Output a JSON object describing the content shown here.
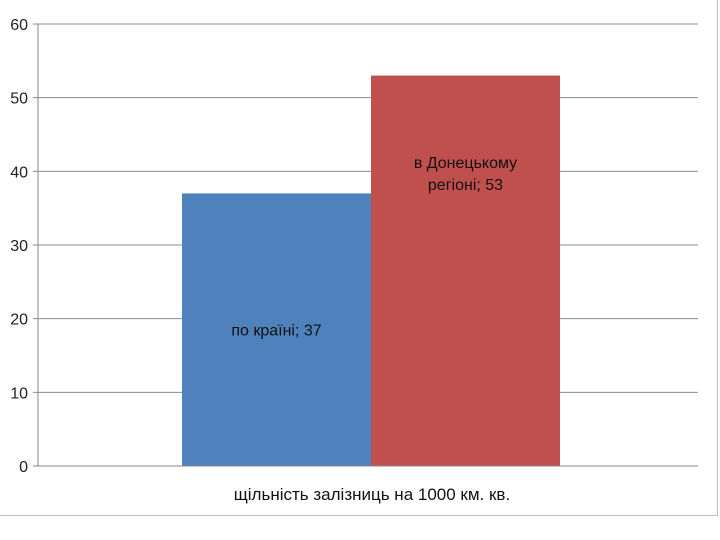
{
  "chart_data": {
    "type": "bar",
    "xlabel": "щільність залізниць на 1000 км. кв.",
    "ylabel": "",
    "ylim": [
      0,
      60
    ],
    "yticks": [
      0,
      10,
      20,
      30,
      40,
      50,
      60
    ],
    "grid": true,
    "bars": [
      {
        "label_line1": "по країні; 37",
        "label_line2": "",
        "value": 37,
        "color": "#4f81bd"
      },
      {
        "label_line1": "в Донецькому",
        "label_line2": "регіоні; 53",
        "value": 53,
        "color": "#c0504d"
      }
    ]
  }
}
